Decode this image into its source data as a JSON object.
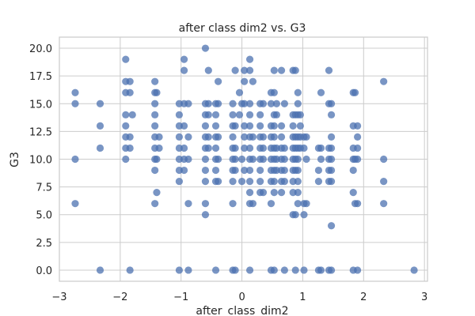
{
  "chart_data": {
    "type": "scatter",
    "title": "after class dim2 vs. G3",
    "xlabel": "after_class_dim2",
    "ylabel": "G3",
    "xlim": [
      -3.0,
      3.05
    ],
    "ylim": [
      -1.0,
      21.0
    ],
    "xticks": [
      -3,
      -2,
      -1,
      0,
      1,
      2,
      3
    ],
    "xtick_labels": [
      "−3",
      "−2",
      "−1",
      "0",
      "1",
      "2",
      "3"
    ],
    "yticks": [
      0,
      2.5,
      5,
      7.5,
      10,
      12.5,
      15,
      17.5,
      20
    ],
    "ytick_labels": [
      "0.0",
      "2.5",
      "5.0",
      "7.5",
      "10.0",
      "12.5",
      "15.0",
      "17.5",
      "20.0"
    ],
    "grid": true,
    "marker_color": "#4c72b0",
    "points": [
      [
        -2.74,
        16
      ],
      [
        -2.74,
        15
      ],
      [
        -2.74,
        10
      ],
      [
        -2.74,
        6
      ],
      [
        -2.33,
        15
      ],
      [
        -2.33,
        13
      ],
      [
        -2.33,
        11
      ],
      [
        -2.33,
        0
      ],
      [
        -1.91,
        19
      ],
      [
        -1.91,
        17
      ],
      [
        -1.91,
        16
      ],
      [
        -1.91,
        14
      ],
      [
        -1.91,
        13
      ],
      [
        -1.91,
        12
      ],
      [
        -1.91,
        11
      ],
      [
        -1.91,
        10
      ],
      [
        -1.84,
        17
      ],
      [
        -1.84,
        16
      ],
      [
        -1.84,
        12
      ],
      [
        -1.84,
        11
      ],
      [
        -1.84,
        0
      ],
      [
        -1.8,
        14
      ],
      [
        -1.43,
        17
      ],
      [
        -1.43,
        16
      ],
      [
        -1.43,
        15
      ],
      [
        -1.43,
        14
      ],
      [
        -1.43,
        13
      ],
      [
        -1.43,
        12
      ],
      [
        -1.43,
        11
      ],
      [
        -1.43,
        10
      ],
      [
        -1.43,
        9
      ],
      [
        -1.43,
        6
      ],
      [
        -1.4,
        16
      ],
      [
        -1.4,
        10
      ],
      [
        -1.4,
        7
      ],
      [
        -1.36,
        12
      ],
      [
        -1.36,
        11
      ],
      [
        -1.03,
        15
      ],
      [
        -1.03,
        14
      ],
      [
        -1.03,
        13
      ],
      [
        -1.03,
        12
      ],
      [
        -1.03,
        11
      ],
      [
        -1.03,
        10
      ],
      [
        -1.03,
        9
      ],
      [
        -1.03,
        8
      ],
      [
        -1.03,
        0
      ],
      [
        -0.95,
        19
      ],
      [
        -0.95,
        18
      ],
      [
        -0.95,
        15
      ],
      [
        -0.95,
        13
      ],
      [
        -0.95,
        11
      ],
      [
        -0.95,
        10
      ],
      [
        -0.95,
        9
      ],
      [
        -0.88,
        15
      ],
      [
        -0.88,
        12
      ],
      [
        -0.88,
        10
      ],
      [
        -0.88,
        6
      ],
      [
        -0.88,
        0
      ],
      [
        -0.6,
        20
      ],
      [
        -0.6,
        15
      ],
      [
        -0.6,
        14
      ],
      [
        -0.6,
        13
      ],
      [
        -0.6,
        12
      ],
      [
        -0.6,
        11
      ],
      [
        -0.6,
        10
      ],
      [
        -0.6,
        9
      ],
      [
        -0.6,
        8
      ],
      [
        -0.6,
        6
      ],
      [
        -0.6,
        5
      ],
      [
        -0.55,
        18
      ],
      [
        -0.55,
        15
      ],
      [
        -0.55,
        14
      ],
      [
        -0.55,
        12
      ],
      [
        -0.55,
        11
      ],
      [
        -0.43,
        15
      ],
      [
        -0.43,
        14
      ],
      [
        -0.43,
        13
      ],
      [
        -0.43,
        12
      ],
      [
        -0.43,
        11
      ],
      [
        -0.43,
        10
      ],
      [
        -0.43,
        9
      ],
      [
        -0.43,
        8
      ],
      [
        -0.43,
        0
      ],
      [
        -0.39,
        17
      ],
      [
        -0.39,
        15
      ],
      [
        -0.39,
        12
      ],
      [
        -0.39,
        10
      ],
      [
        -0.39,
        8
      ],
      [
        -0.15,
        15
      ],
      [
        -0.15,
        14
      ],
      [
        -0.15,
        13
      ],
      [
        -0.15,
        12
      ],
      [
        -0.15,
        11
      ],
      [
        -0.15,
        10
      ],
      [
        -0.15,
        9
      ],
      [
        -0.15,
        8
      ],
      [
        -0.15,
        6
      ],
      [
        -0.15,
        0
      ],
      [
        -0.11,
        18
      ],
      [
        -0.11,
        13
      ],
      [
        -0.11,
        11
      ],
      [
        -0.11,
        10
      ],
      [
        -0.11,
        9
      ],
      [
        -0.11,
        0
      ],
      [
        -0.04,
        16
      ],
      [
        -0.04,
        14
      ],
      [
        0.0,
        15
      ],
      [
        0.0,
        10
      ],
      [
        0.0,
        8
      ],
      [
        0.04,
        18
      ],
      [
        0.04,
        17
      ],
      [
        0.04,
        15
      ],
      [
        0.04,
        13
      ],
      [
        0.04,
        12
      ],
      [
        0.04,
        11
      ],
      [
        0.04,
        9
      ],
      [
        0.13,
        19
      ],
      [
        0.13,
        18
      ],
      [
        0.13,
        15
      ],
      [
        0.13,
        14
      ],
      [
        0.13,
        13
      ],
      [
        0.13,
        12
      ],
      [
        0.13,
        11
      ],
      [
        0.13,
        10
      ],
      [
        0.13,
        9
      ],
      [
        0.13,
        8
      ],
      [
        0.13,
        7
      ],
      [
        0.13,
        6
      ],
      [
        0.13,
        0
      ],
      [
        0.18,
        17
      ],
      [
        0.18,
        12
      ],
      [
        0.18,
        10
      ],
      [
        0.18,
        6
      ],
      [
        0.3,
        15
      ],
      [
        0.3,
        14
      ],
      [
        0.3,
        13
      ],
      [
        0.3,
        12
      ],
      [
        0.3,
        11
      ],
      [
        0.3,
        10
      ],
      [
        0.3,
        9
      ],
      [
        0.3,
        8
      ],
      [
        0.3,
        7
      ],
      [
        0.35,
        15
      ],
      [
        0.35,
        12
      ],
      [
        0.35,
        11
      ],
      [
        0.35,
        10
      ],
      [
        0.35,
        7
      ],
      [
        0.48,
        16
      ],
      [
        0.48,
        15
      ],
      [
        0.48,
        13
      ],
      [
        0.48,
        12
      ],
      [
        0.48,
        11
      ],
      [
        0.48,
        10
      ],
      [
        0.48,
        9
      ],
      [
        0.48,
        8
      ],
      [
        0.48,
        6
      ],
      [
        0.48,
        0
      ],
      [
        0.53,
        18
      ],
      [
        0.53,
        16
      ],
      [
        0.53,
        14
      ],
      [
        0.53,
        13
      ],
      [
        0.53,
        12
      ],
      [
        0.53,
        11
      ],
      [
        0.53,
        10
      ],
      [
        0.53,
        9
      ],
      [
        0.53,
        8
      ],
      [
        0.53,
        7
      ],
      [
        0.53,
        0
      ],
      [
        0.57,
        15
      ],
      [
        0.57,
        14
      ],
      [
        0.57,
        11
      ],
      [
        0.57,
        10
      ],
      [
        0.57,
        9
      ],
      [
        0.65,
        18
      ],
      [
        0.65,
        13
      ],
      [
        0.65,
        12
      ],
      [
        0.65,
        11
      ],
      [
        0.65,
        10
      ],
      [
        0.65,
        9
      ],
      [
        0.65,
        8
      ],
      [
        0.65,
        7
      ],
      [
        0.7,
        15
      ],
      [
        0.7,
        11
      ],
      [
        0.7,
        10
      ],
      [
        0.7,
        9
      ],
      [
        0.7,
        8
      ],
      [
        0.7,
        0
      ],
      [
        0.84,
        18
      ],
      [
        0.84,
        14
      ],
      [
        0.84,
        13
      ],
      [
        0.84,
        12
      ],
      [
        0.84,
        11
      ],
      [
        0.84,
        10
      ],
      [
        0.84,
        9
      ],
      [
        0.84,
        8
      ],
      [
        0.84,
        7
      ],
      [
        0.84,
        5
      ],
      [
        0.88,
        18
      ],
      [
        0.88,
        14
      ],
      [
        0.88,
        12
      ],
      [
        0.88,
        11
      ],
      [
        0.88,
        10
      ],
      [
        0.88,
        9
      ],
      [
        0.88,
        5
      ],
      [
        0.88,
        0
      ],
      [
        0.92,
        16
      ],
      [
        0.92,
        15
      ],
      [
        0.92,
        14
      ],
      [
        0.92,
        12
      ],
      [
        0.92,
        11
      ],
      [
        0.92,
        10
      ],
      [
        0.92,
        9
      ],
      [
        0.92,
        8
      ],
      [
        0.92,
        7
      ],
      [
        0.92,
        6
      ],
      [
        0.96,
        14
      ],
      [
        0.96,
        13
      ],
      [
        0.96,
        12
      ],
      [
        0.96,
        11
      ],
      [
        1.02,
        12
      ],
      [
        1.02,
        11
      ],
      [
        1.02,
        6
      ],
      [
        1.02,
        5
      ],
      [
        1.02,
        0
      ],
      [
        1.06,
        12
      ],
      [
        1.06,
        10
      ],
      [
        1.06,
        6
      ],
      [
        1.26,
        11
      ],
      [
        1.26,
        9
      ],
      [
        1.26,
        8
      ],
      [
        1.26,
        0
      ],
      [
        1.3,
        16
      ],
      [
        1.3,
        11
      ],
      [
        1.3,
        10
      ],
      [
        1.3,
        0
      ],
      [
        1.43,
        18
      ],
      [
        1.43,
        15
      ],
      [
        1.43,
        11
      ],
      [
        1.43,
        10
      ],
      [
        1.43,
        9
      ],
      [
        1.43,
        8
      ],
      [
        1.43,
        0
      ],
      [
        1.47,
        15
      ],
      [
        1.47,
        14
      ],
      [
        1.47,
        12
      ],
      [
        1.47,
        11
      ],
      [
        1.47,
        10
      ],
      [
        1.47,
        9
      ],
      [
        1.47,
        8
      ],
      [
        1.47,
        4
      ],
      [
        1.47,
        0
      ],
      [
        1.83,
        16
      ],
      [
        1.83,
        13
      ],
      [
        1.83,
        11
      ],
      [
        1.83,
        10
      ],
      [
        1.83,
        9
      ],
      [
        1.83,
        7
      ],
      [
        1.83,
        0
      ],
      [
        1.86,
        16
      ],
      [
        1.86,
        10
      ],
      [
        1.86,
        6
      ],
      [
        1.9,
        13
      ],
      [
        1.9,
        12
      ],
      [
        1.9,
        11
      ],
      [
        1.9,
        10
      ],
      [
        1.9,
        6
      ],
      [
        1.9,
        0
      ],
      [
        2.33,
        17
      ],
      [
        2.33,
        10
      ],
      [
        2.33,
        8
      ],
      [
        2.33,
        6
      ],
      [
        2.83,
        0
      ]
    ]
  }
}
